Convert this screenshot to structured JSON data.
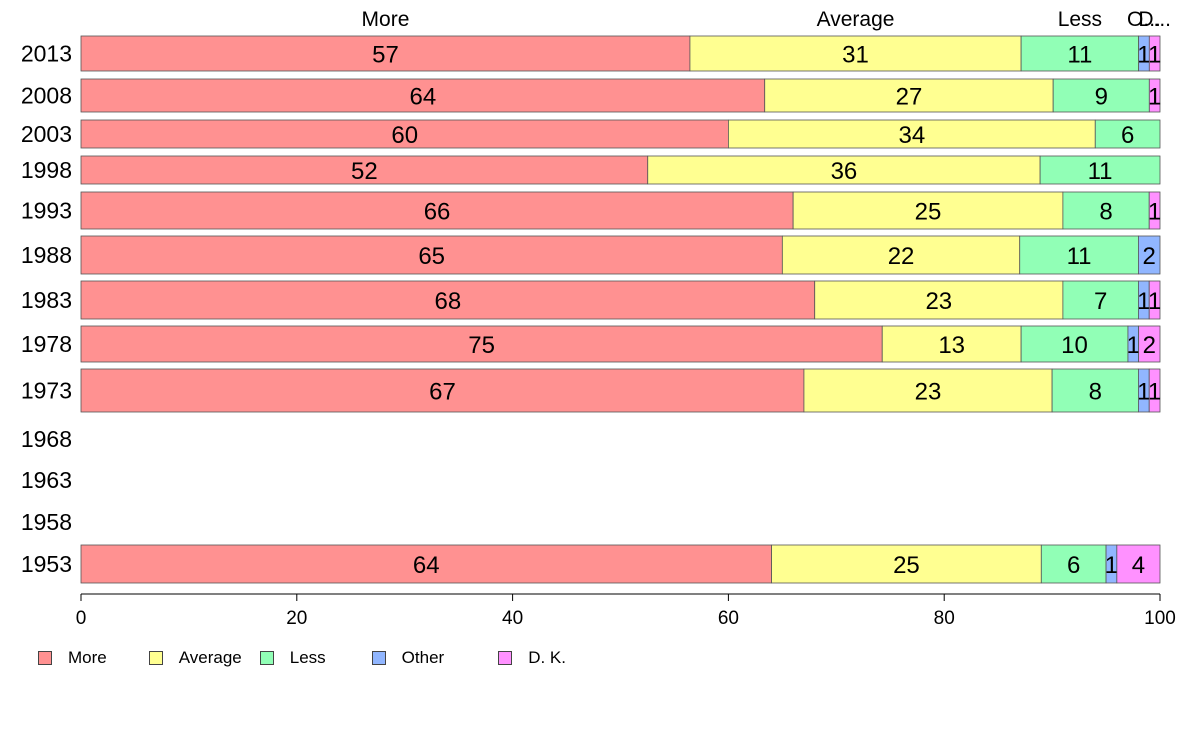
{
  "chart_data": {
    "type": "bar",
    "orientation": "horizontal",
    "stacked": true,
    "categories": [
      "2013",
      "2008",
      "2003",
      "1998",
      "1993",
      "1988",
      "1983",
      "1978",
      "1973",
      "1968",
      "1963",
      "1958",
      "1953"
    ],
    "series": [
      {
        "name": "More",
        "color": "#ff9191",
        "values": [
          57,
          64,
          60,
          52,
          66,
          65,
          68,
          75,
          67,
          null,
          null,
          null,
          64
        ]
      },
      {
        "name": "Average",
        "color": "#ffff91",
        "values": [
          31,
          27,
          34,
          36,
          25,
          22,
          23,
          13,
          23,
          null,
          null,
          null,
          25
        ]
      },
      {
        "name": "Less",
        "color": "#91ffb6",
        "values": [
          11,
          9,
          6,
          11,
          8,
          11,
          7,
          10,
          8,
          null,
          null,
          null,
          6
        ]
      },
      {
        "name": "Other",
        "color": "#91b6ff",
        "values": [
          1,
          0,
          0,
          0,
          0,
          2,
          1,
          1,
          1,
          null,
          null,
          null,
          1
        ]
      },
      {
        "name": "D. K.",
        "color": "#ff91ff",
        "values": [
          1,
          1,
          0,
          0,
          1,
          0,
          1,
          2,
          1,
          null,
          null,
          null,
          4
        ]
      }
    ],
    "top_labels": [
      "More",
      "Average",
      "Less",
      "O...",
      "D..."
    ],
    "xlim": [
      0,
      100
    ],
    "xticks": [
      "0",
      "20",
      "40",
      "60",
      "80",
      "100"
    ],
    "grid": false,
    "legend_position": "bottom-left"
  }
}
